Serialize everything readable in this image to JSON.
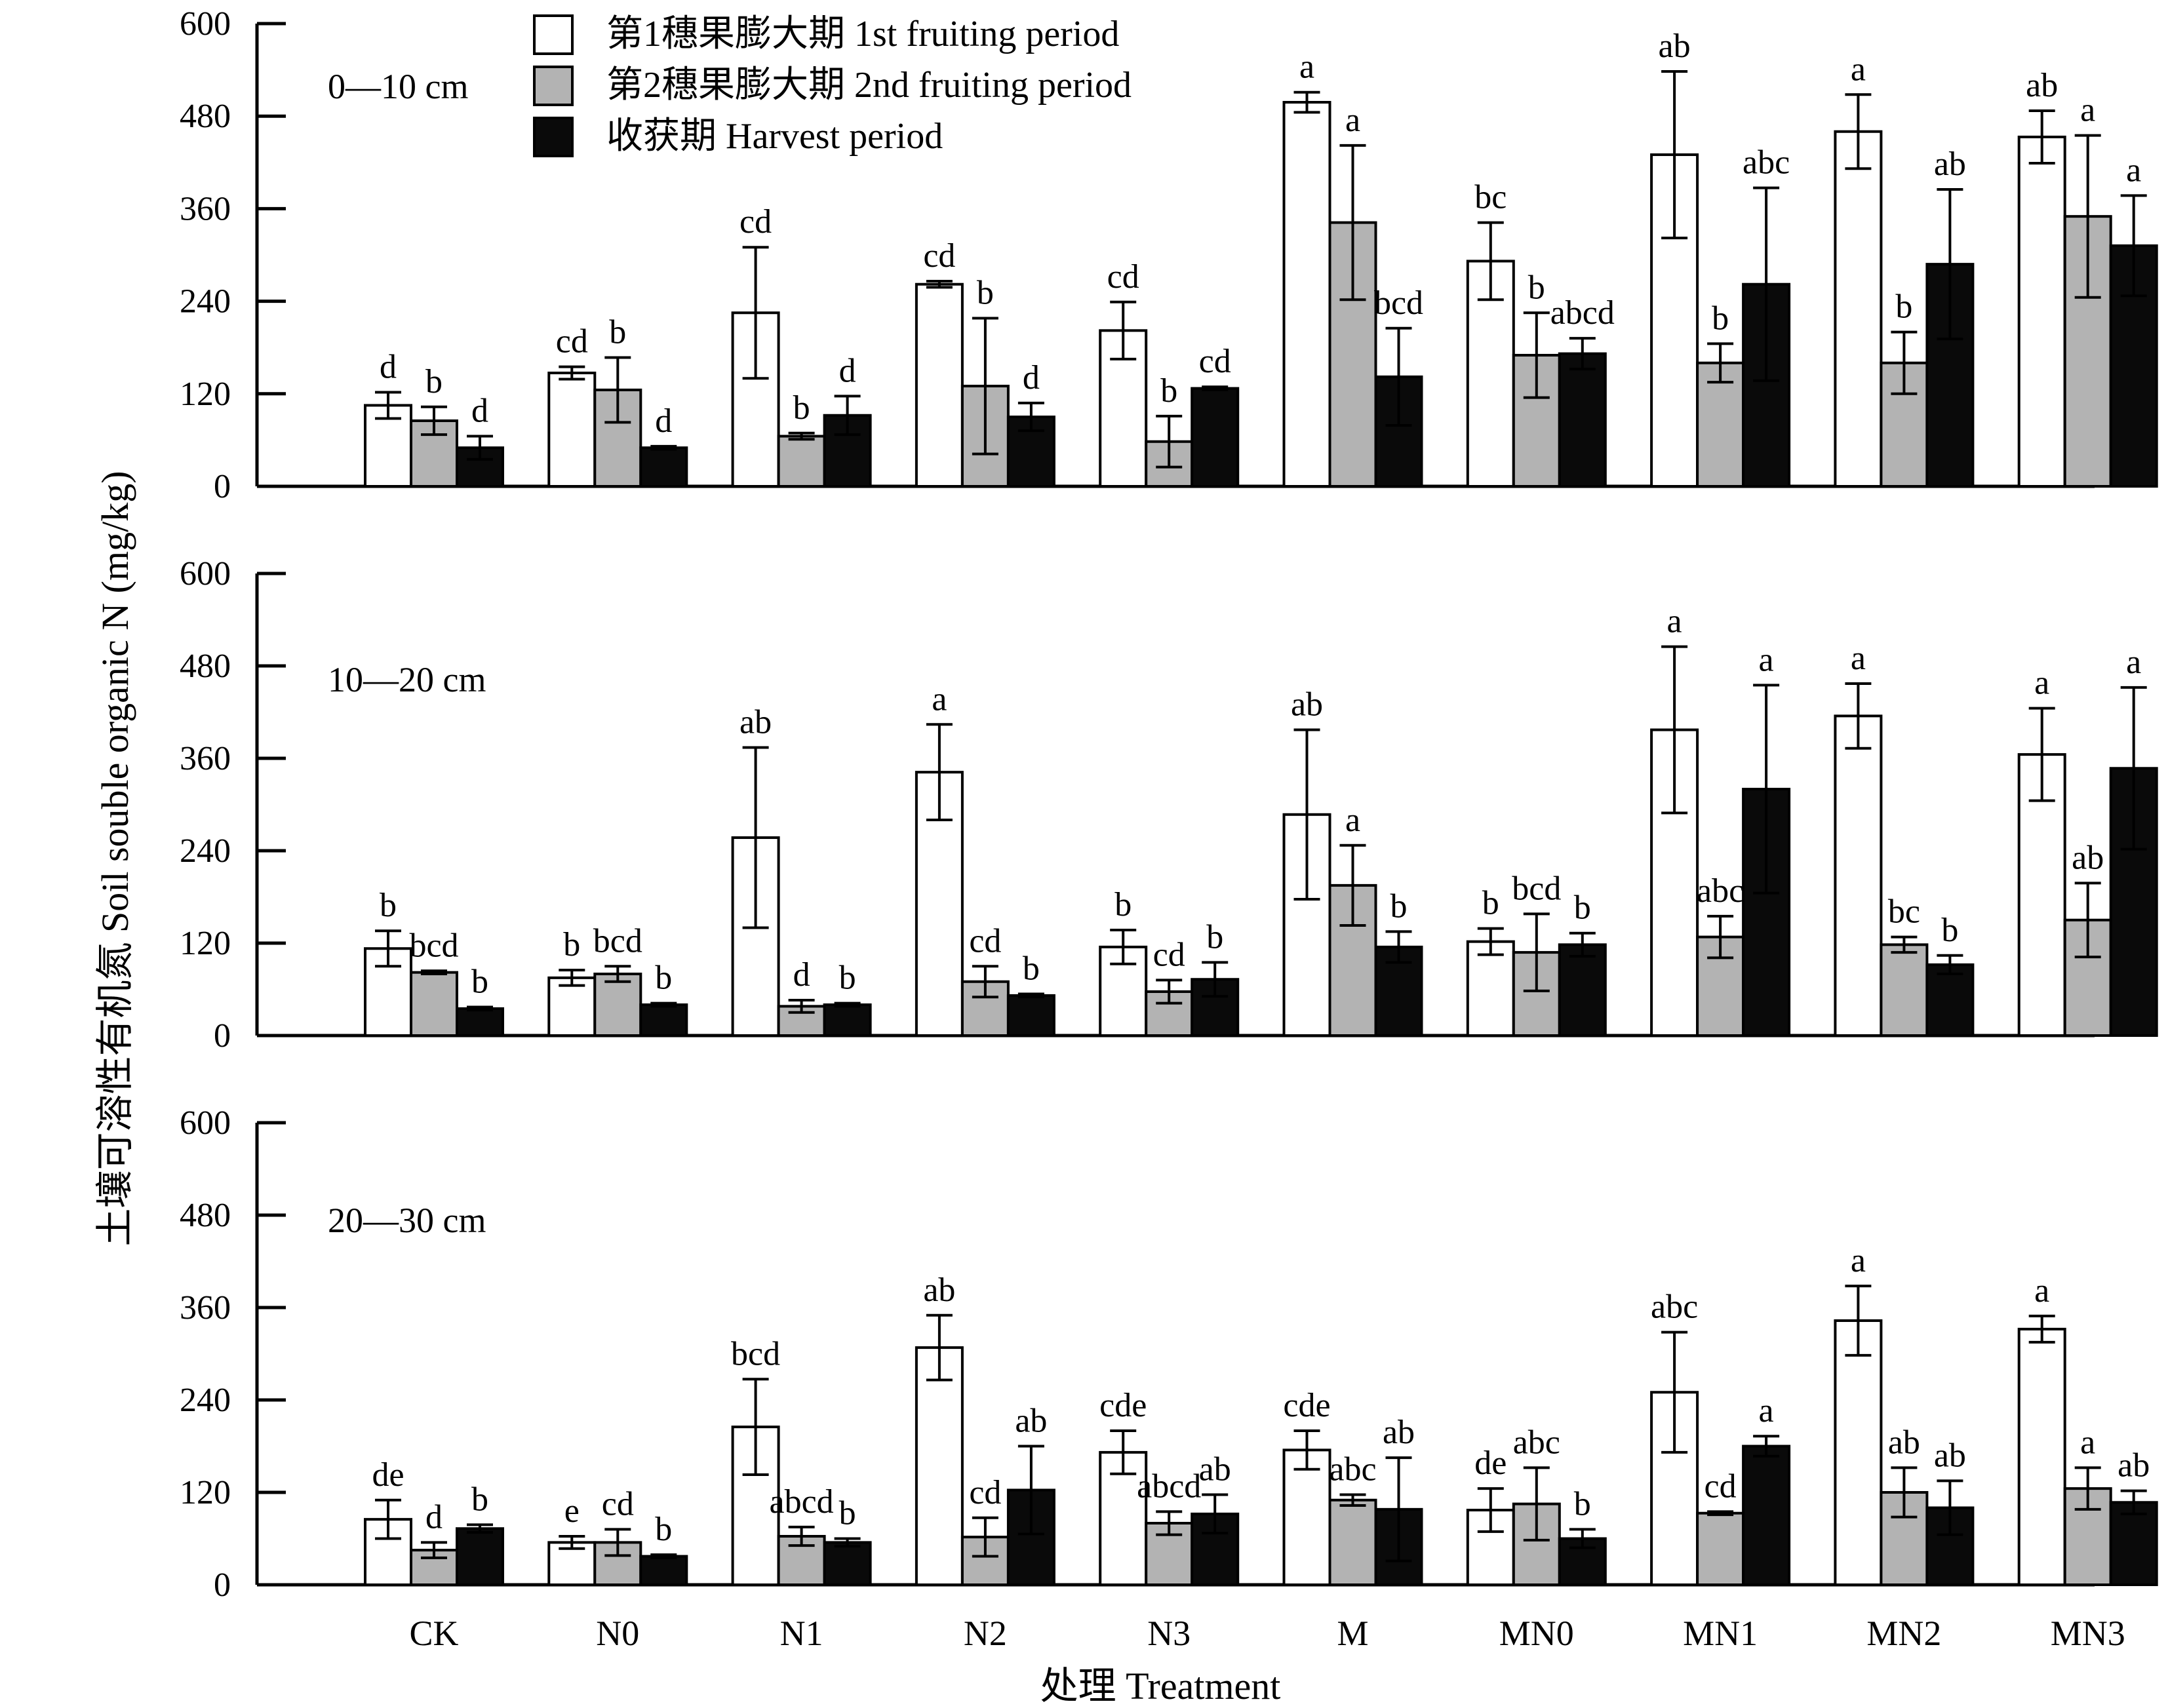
{
  "chart_data": {
    "type": "bar",
    "title": "",
    "xlabel": "处理 Treatment",
    "ylabel": "土壤可溶性有机氮 Soil souble organic N (mg/kg)",
    "ylim": [
      0,
      600
    ],
    "yticks": [
      0,
      120,
      240,
      360,
      480,
      600
    ],
    "grid": false,
    "legend_position": "top",
    "categories": [
      "CK",
      "N0",
      "N1",
      "N2",
      "N3",
      "M",
      "MN0",
      "MN1",
      "MN2",
      "MN3"
    ],
    "series_styles": [
      {
        "name": "第1穗果膨大期 1st fruiting period",
        "fill": "#ffffff"
      },
      {
        "name": "第2穗果膨大期 2nd fruiting period",
        "fill": "#b3b3b3"
      },
      {
        "name": "收获期 Harvest period",
        "fill": "#0a0a0a"
      }
    ],
    "panels": [
      {
        "depth": "0—10 cm",
        "series": [
          {
            "name": "第1穗果膨大期 1st fruiting period",
            "values": [
              105,
              147,
              225,
              262,
              202,
              498,
              292,
              430,
              460,
              453
            ],
            "errors": [
              17,
              8,
              85,
              4,
              37,
              13,
              50,
              108,
              48,
              34
            ],
            "letters": [
              "d",
              "cd",
              "cd",
              "cd",
              "cd",
              "a",
              "bc",
              "ab",
              "a",
              "ab"
            ]
          },
          {
            "name": "第2穗果膨大期 2nd fruiting period",
            "values": [
              85,
              125,
              65,
              130,
              58,
              342,
              170,
              160,
              160,
              350
            ],
            "errors": [
              18,
              42,
              4,
              88,
              33,
              100,
              55,
              25,
              40,
              105
            ],
            "letters": [
              "b",
              "b",
              "b",
              "b",
              "b",
              "a",
              "b",
              "b",
              "b",
              "a"
            ]
          },
          {
            "name": "收获期 Harvest period",
            "values": [
              50,
              50,
              92,
              90,
              127,
              142,
              172,
              262,
              288,
              312
            ],
            "errors": [
              15,
              2,
              25,
              18,
              2,
              63,
              20,
              125,
              97,
              65
            ],
            "letters": [
              "d",
              "d",
              "d",
              "d",
              "cd",
              "bcd",
              "abcd",
              "abc",
              "ab",
              "a"
            ]
          }
        ]
      },
      {
        "depth": "10—20 cm",
        "series": [
          {
            "name": "第1穗果膨大期 1st fruiting period",
            "values": [
              113,
              75,
              257,
              342,
              115,
              287,
              122,
              397,
              415,
              365
            ],
            "errors": [
              23,
              10,
              117,
              62,
              22,
              110,
              17,
              108,
              42,
              60
            ],
            "letters": [
              "b",
              "b",
              "ab",
              "a",
              "b",
              "ab",
              "b",
              "a",
              "a",
              "a"
            ]
          },
          {
            "name": "第2穗果膨大期 2nd fruiting period",
            "values": [
              82,
              80,
              38,
              70,
              57,
              195,
              108,
              128,
              118,
              150
            ],
            "errors": [
              2,
              10,
              8,
              20,
              15,
              52,
              50,
              27,
              10,
              48
            ],
            "letters": [
              "bcd",
              "bcd",
              "d",
              "cd",
              "cd",
              "a",
              "bcd",
              "abc",
              "bc",
              "ab"
            ]
          },
          {
            "name": "收获期 Harvest period",
            "values": [
              35,
              40,
              40,
              52,
              73,
              115,
              118,
              320,
              92,
              347
            ],
            "errors": [
              2,
              2,
              2,
              2,
              22,
              20,
              15,
              135,
              12,
              105
            ],
            "letters": [
              "b",
              "b",
              "b",
              "b",
              "b",
              "b",
              "b",
              "a",
              "b",
              "a"
            ]
          }
        ]
      },
      {
        "depth": "20—30 cm",
        "series": [
          {
            "name": "第1穗果膨大期 1st fruiting period",
            "values": [
              85,
              55,
              205,
              308,
              172,
              175,
              97,
              250,
              343,
              332
            ],
            "errors": [
              25,
              8,
              62,
              42,
              28,
              25,
              28,
              78,
              45,
              17
            ],
            "letters": [
              "de",
              "e",
              "bcd",
              "ab",
              "cde",
              "cde",
              "de",
              "abc",
              "a",
              "a"
            ]
          },
          {
            "name": "第2穗果膨大期 2nd fruiting period",
            "values": [
              45,
              55,
              63,
              62,
              80,
              110,
              105,
              93,
              120,
              125
            ],
            "errors": [
              10,
              17,
              12,
              25,
              15,
              7,
              47,
              2,
              32,
              27
            ],
            "letters": [
              "d",
              "cd",
              "abcd",
              "cd",
              "abcd",
              "abc",
              "abc",
              "cd",
              "ab",
              "a"
            ]
          },
          {
            "name": "收获期 Harvest period",
            "values": [
              73,
              37,
              55,
              123,
              92,
              98,
              60,
              180,
              100,
              107
            ],
            "errors": [
              5,
              2,
              5,
              57,
              25,
              67,
              12,
              13,
              35,
              15
            ],
            "letters": [
              "b",
              "b",
              "b",
              "ab",
              "ab",
              "ab",
              "b",
              "a",
              "ab",
              "ab"
            ]
          }
        ]
      }
    ]
  }
}
